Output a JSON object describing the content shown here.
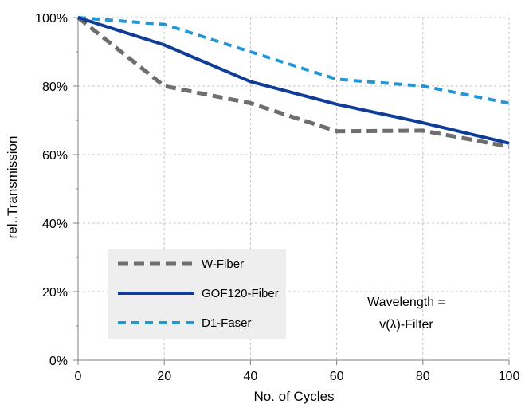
{
  "chart_data": {
    "type": "line",
    "xlabel": "No. of Cycles",
    "ylabel": "rel..Transmission",
    "xlim": [
      0,
      100
    ],
    "ylim": [
      0,
      100
    ],
    "x_ticks": [
      "0",
      "20",
      "40",
      "60",
      "80",
      "100"
    ],
    "y_ticks": [
      "0%",
      "20%",
      "40%",
      "60%",
      "80%",
      "100%"
    ],
    "grid": true,
    "legend_position": "bottom-left",
    "series": [
      {
        "name": "W-Fiber",
        "color": "#6e6e6e",
        "style": "dashed",
        "x": [
          0,
          20,
          40,
          60,
          80,
          100
        ],
        "y": [
          100,
          80,
          75,
          66.8,
          67,
          62.3
        ]
      },
      {
        "name": "GOF120-Fiber",
        "color": "#0f3c96",
        "style": "solid",
        "x": [
          0,
          20,
          40,
          60,
          80,
          100
        ],
        "y": [
          100,
          92,
          81.3,
          74.7,
          69.3,
          63.3
        ]
      },
      {
        "name": "D1-Faser",
        "color": "#2596d4",
        "style": "dashed",
        "x": [
          0,
          20,
          40,
          60,
          80,
          100
        ],
        "y": [
          100,
          98,
          90,
          82,
          80,
          75
        ]
      }
    ],
    "annotation": [
      "Wavelength =",
      "v(λ)-Filter"
    ]
  }
}
